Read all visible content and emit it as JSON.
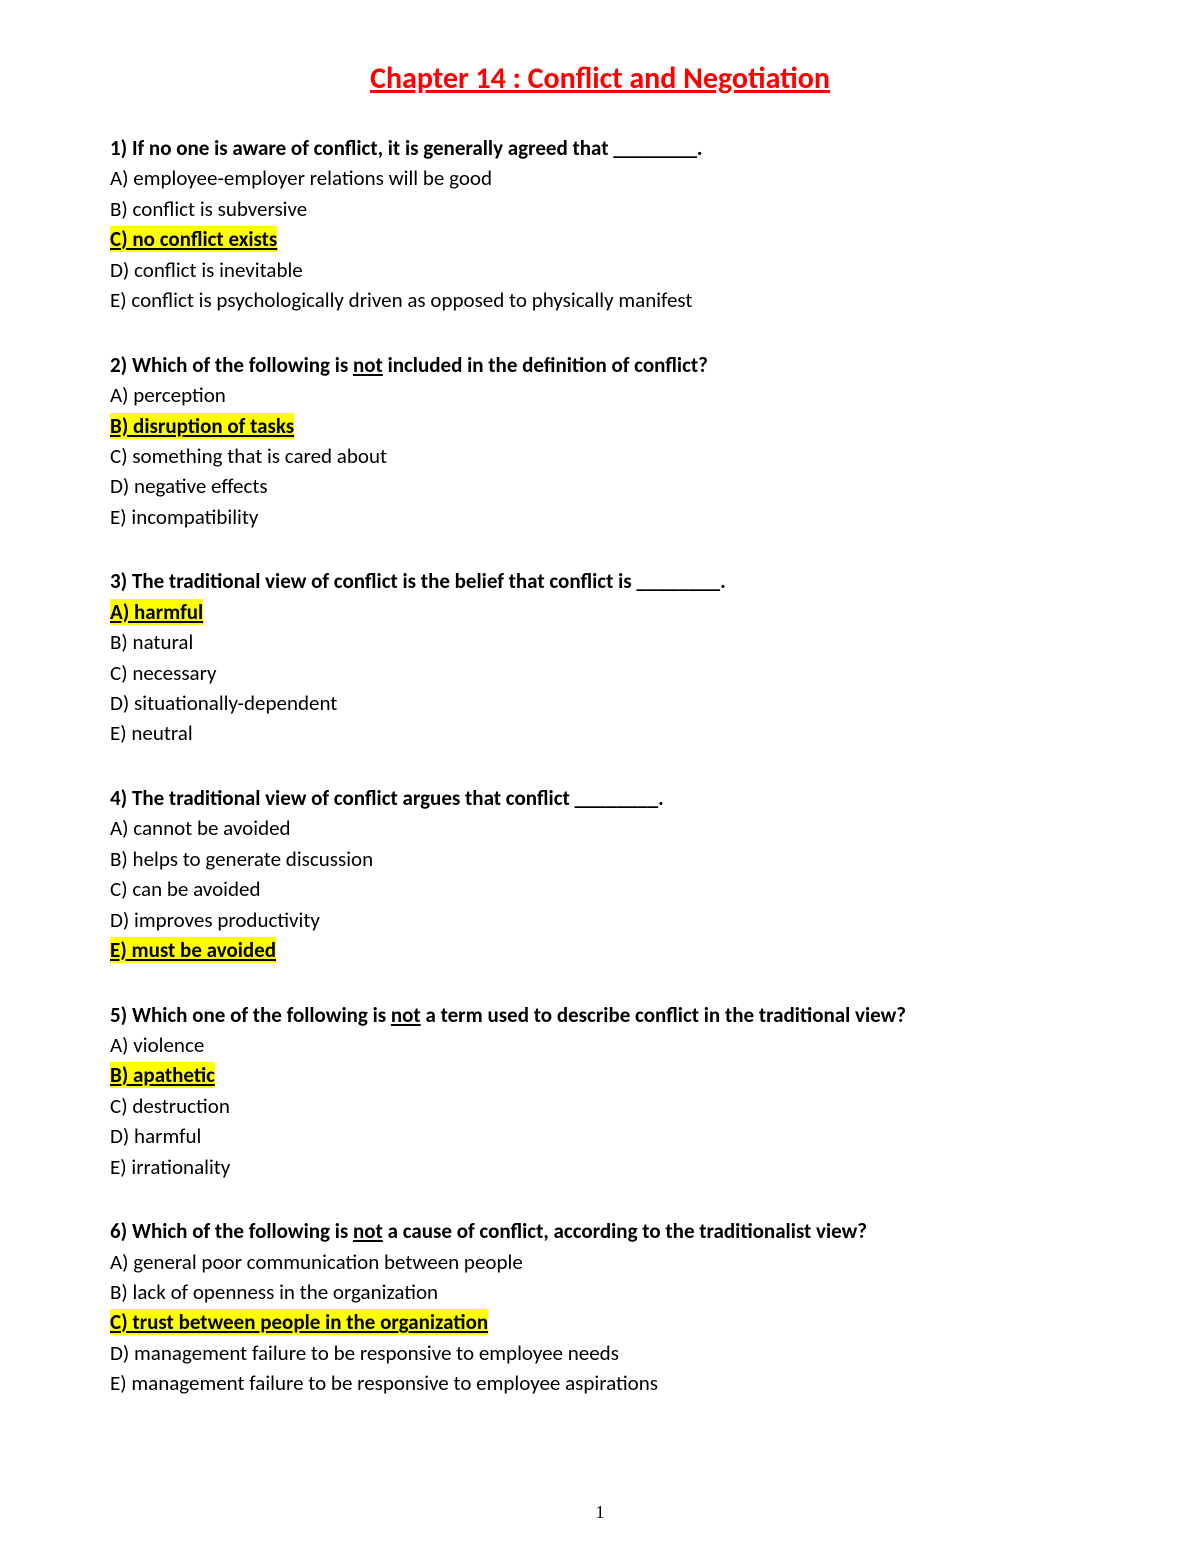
{
  "title": "Chapter 14 : Conflict and Negotiation",
  "page_number": "1",
  "questions": [
    {
      "num": "1)",
      "stem_pre": "If no one is aware of conflict, it is generally agreed that ________.",
      "opts": {
        "A": "A) employee-employer relations will be good",
        "B": "B) conflict is subversive",
        "C": "C) no conflict exists ",
        "D": "D) conflict is inevitable",
        "E": "E) conflict is psychologically driven as opposed to physically manifest"
      },
      "correct": "C"
    },
    {
      "num": "2)",
      "stem_pre": "Which of the following is ",
      "stem_under": "not",
      "stem_post": " included in the definition of conflict?",
      "opts": {
        "A": "A) perception",
        "B": "B) disruption of tasks ",
        "C": "C) something that is cared about",
        "D": "D) negative effects",
        "E": "E) incompatibility"
      },
      "correct": "B"
    },
    {
      "num": "3)",
      "stem_pre": "The traditional view of conflict is the belief that conflict is ________.",
      "opts": {
        "A": "A) harmful ",
        "B": "B) natural",
        "C": "C) necessary",
        "D": "D) situationally-dependent",
        "E": "E) neutral"
      },
      "correct": "A"
    },
    {
      "num": "4)",
      "stem_pre": "The traditional view of conflict argues that conflict ________.",
      "opts": {
        "A": "A) cannot be avoided",
        "B": "B) helps to generate discussion",
        "C": "C) can be avoided",
        "D": "D) improves productivity",
        "E": "E) must be avoided "
      },
      "correct": "E"
    },
    {
      "num": "5)",
      "stem_pre": "Which one of the following is ",
      "stem_under": "not",
      "stem_post": " a term used to describe conflict in the traditional view?",
      "opts": {
        "A": "A) violence",
        "B": "B) apathetic",
        "C": "C) destruction",
        "D": "D) harmful",
        "E": "E) irrationality"
      },
      "correct": "B"
    },
    {
      "num": "6)",
      "stem_pre": "Which of the following is ",
      "stem_under": "not",
      "stem_post": " a cause of conflict, according to the traditionalist view?",
      "opts": {
        "A": "A) general poor communication between people",
        "B": "B) lack of openness in the organization",
        "C": "C) trust between people in the organization",
        "D": "D) management failure to be responsive to employee needs",
        "E": "E) management failure to be responsive to employee aspirations"
      },
      "correct": "C"
    }
  ]
}
